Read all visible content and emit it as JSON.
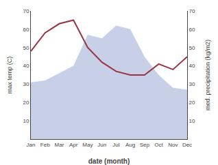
{
  "chart_data": {
    "type": "combo",
    "categories": [
      "Jan",
      "Feb",
      "Mar",
      "Apr",
      "May",
      "Jun",
      "Jul",
      "Aug",
      "Sep",
      "Oct",
      "Nov",
      "Dec"
    ],
    "series": [
      {
        "type": "area",
        "color": "#c8d0e8",
        "values": [
          31,
          32,
          36,
          40,
          57,
          55,
          62,
          60,
          45,
          35,
          28,
          27
        ]
      },
      {
        "type": "line",
        "color": "#993344",
        "axis": "y2",
        "values": [
          48,
          58,
          63,
          65,
          50,
          42,
          37,
          35,
          35,
          41,
          38,
          45
        ]
      }
    ],
    "xlabel": "date (month)",
    "ylabel": "max temp (C)",
    "y2label": "med. precipitation (kg/m2)",
    "ylim": [
      0,
      70
    ],
    "yticks": [
      10,
      20,
      30,
      40,
      50,
      60,
      70
    ],
    "y2lim": [
      0,
      70
    ],
    "y2ticks": [
      10,
      20,
      30,
      40,
      50,
      60,
      70
    ],
    "grid": false
  }
}
